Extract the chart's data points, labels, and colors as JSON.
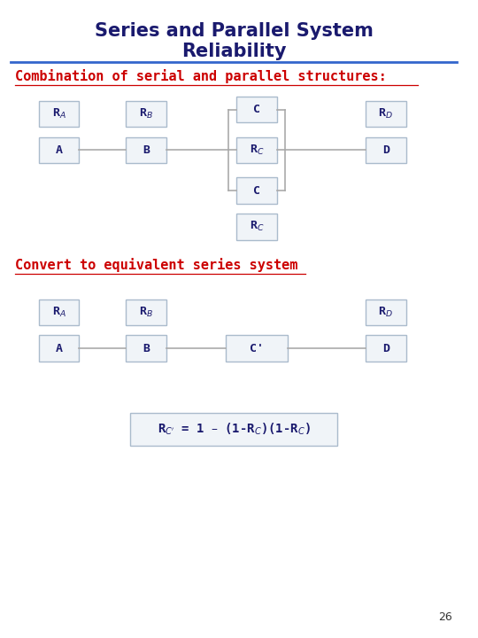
{
  "title": "Series and Parallel System\nReliability",
  "title_color": "#1a1a6e",
  "title_fontsize": 15,
  "bg_color": "#ffffff",
  "subtitle1": "Combination of serial and parallel structures:",
  "subtitle2": "Convert to equivalent series system",
  "subtitle_color": "#cc0000",
  "subtitle_fontsize": 11,
  "box_edge_color": "#aabbcc",
  "box_facecolor": "#f0f4f8",
  "label_color": "#1a1a6e",
  "line_color": "#aaaaaa",
  "page_number": "26"
}
